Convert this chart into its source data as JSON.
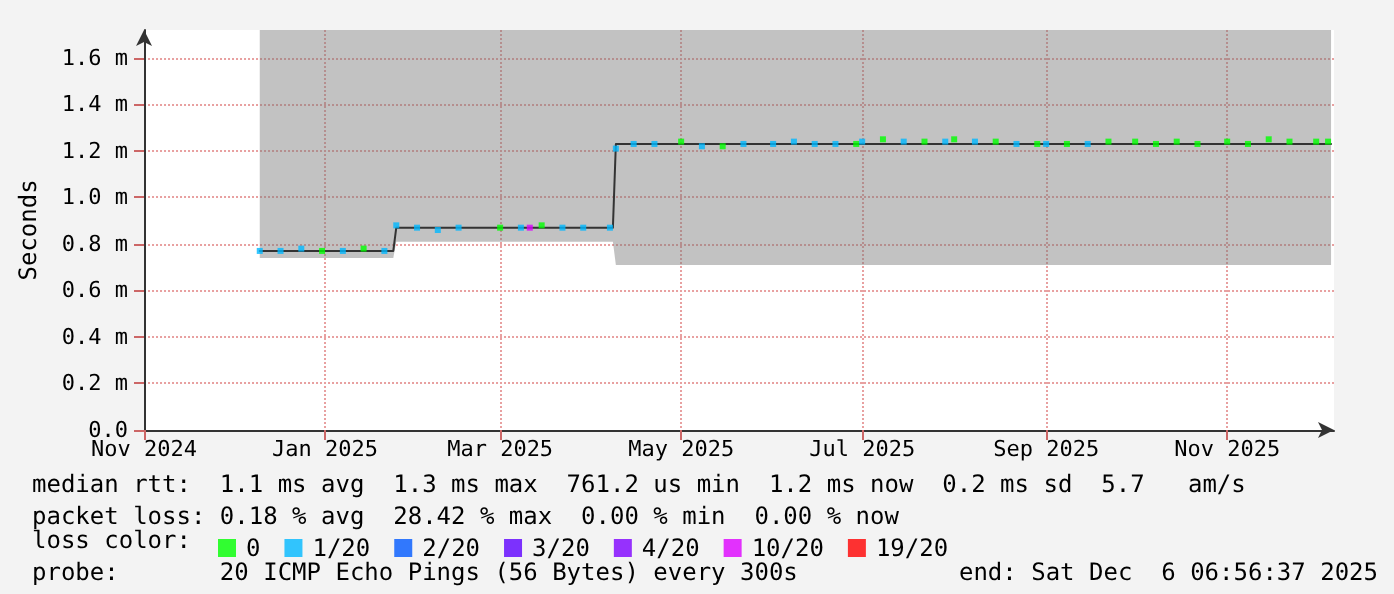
{
  "chart_data": {
    "type": "line",
    "ylabel": "Seconds",
    "xlim": [
      "2024-11-01",
      "2025-12-07"
    ],
    "xticks": [
      {
        "value": "2024-11-01",
        "label": "Nov 2024"
      },
      {
        "value": "2025-01-01",
        "label": "Jan 2025"
      },
      {
        "value": "2025-03-01",
        "label": "Mar 2025"
      },
      {
        "value": "2025-05-01",
        "label": "May 2025"
      },
      {
        "value": "2025-07-01",
        "label": "Jul 2025"
      },
      {
        "value": "2025-09-01",
        "label": "Sep 2025"
      },
      {
        "value": "2025-11-01",
        "label": "Nov 2025"
      }
    ],
    "ylim": [
      0,
      1.72
    ],
    "yticks": [
      {
        "value": 0,
        "label": "0.0"
      },
      {
        "value": 0.2,
        "label": "0.2 m"
      },
      {
        "value": 0.4,
        "label": "0.4 m"
      },
      {
        "value": 0.6,
        "label": "0.6 m"
      },
      {
        "value": 0.8,
        "label": "0.8 m"
      },
      {
        "value": 1.0,
        "label": "1.0 m"
      },
      {
        "value": 1.2,
        "label": "1.2 m"
      },
      {
        "value": 1.4,
        "label": "1.4 m"
      },
      {
        "value": 1.6,
        "label": "1.6 m"
      }
    ],
    "grid": true,
    "legend": "bottom",
    "legend_title": "loss color:",
    "series": [
      {
        "color": "#333333",
        "x": [
          "2024-12-10",
          "2025-01-24",
          "2025-01-25",
          "2025-04-08",
          "2025-04-09",
          "2025-12-06"
        ],
        "values": [
          0.77,
          0.77,
          0.87,
          0.87,
          1.23,
          1.23
        ],
        "lower": [
          0.74,
          0.74,
          0.81,
          0.81,
          0.71,
          0.71
        ],
        "upper": [
          1.72,
          1.72,
          1.72,
          1.72,
          1.72,
          1.72
        ]
      },
      {
        "type": "scatter",
        "marker": "square",
        "name": "0",
        "color": "#00ff00",
        "x": [
          "2024-12-31",
          "2025-01-14",
          "2025-03-01",
          "2025-03-15",
          "2025-05-01",
          "2025-05-15",
          "2025-06-29",
          "2025-07-08",
          "2025-07-22",
          "2025-08-01",
          "2025-08-15",
          "2025-08-29",
          "2025-09-08",
          "2025-09-22",
          "2025-10-01",
          "2025-10-08",
          "2025-10-15",
          "2025-10-22",
          "2025-11-01",
          "2025-11-08",
          "2025-11-15",
          "2025-11-22",
          "2025-12-01",
          "2025-12-05"
        ],
        "values": [
          0.77,
          0.78,
          0.87,
          0.88,
          1.24,
          1.22,
          1.23,
          1.25,
          1.24,
          1.25,
          1.24,
          1.23,
          1.23,
          1.24,
          1.24,
          1.23,
          1.24,
          1.23,
          1.24,
          1.23,
          1.25,
          1.24,
          1.24,
          1.24
        ]
      },
      {
        "type": "scatter",
        "marker": "square",
        "name": "1/20",
        "color": "#00b8ff",
        "x": [
          "2024-12-10",
          "2024-12-17",
          "2024-12-24",
          "2025-01-07",
          "2025-01-21",
          "2025-01-25",
          "2025-02-01",
          "2025-02-08",
          "2025-02-15",
          "2025-03-08",
          "2025-03-22",
          "2025-03-29",
          "2025-04-07",
          "2025-04-09",
          "2025-04-15",
          "2025-04-22",
          "2025-05-08",
          "2025-05-22",
          "2025-06-01",
          "2025-06-08",
          "2025-06-15",
          "2025-06-22",
          "2025-07-01",
          "2025-07-15",
          "2025-07-29",
          "2025-08-08",
          "2025-08-22",
          "2025-09-01",
          "2025-09-15"
        ],
        "values": [
          0.77,
          0.77,
          0.78,
          0.77,
          0.77,
          0.88,
          0.87,
          0.86,
          0.87,
          0.87,
          0.87,
          0.87,
          0.87,
          1.21,
          1.23,
          1.23,
          1.22,
          1.23,
          1.23,
          1.24,
          1.23,
          1.23,
          1.24,
          1.24,
          1.24,
          1.24,
          1.23,
          1.23,
          1.23
        ]
      },
      {
        "type": "scatter",
        "marker": "square",
        "name": "2/20",
        "color": "#0059ff"
      },
      {
        "type": "scatter",
        "marker": "square",
        "name": "3/20",
        "color": "#5e00ff"
      },
      {
        "type": "scatter",
        "marker": "square",
        "name": "4/20",
        "color": "#7e00ff"
      },
      {
        "type": "scatter",
        "marker": "square",
        "name": "10/20",
        "color": "#dd00ff",
        "x": [
          "2025-03-11"
        ],
        "values": [
          0.87
        ]
      },
      {
        "type": "scatter",
        "marker": "square",
        "name": "19/20",
        "color": "#ff0000"
      }
    ],
    "annotations": [
      "median rtt:  1.1 ms avg  1.3 ms max  761.2 us min  1.2 ms now  0.2 ms sd  5.7   am/s",
      "packet loss: 0.18 % avg  28.42 % max  0.00 % min  0.00 % now",
      "probe:       20 ICMP Echo Pings (56 Bytes) every 300s",
      "end: Sat Dec  6 06:56:37 2025"
    ]
  }
}
